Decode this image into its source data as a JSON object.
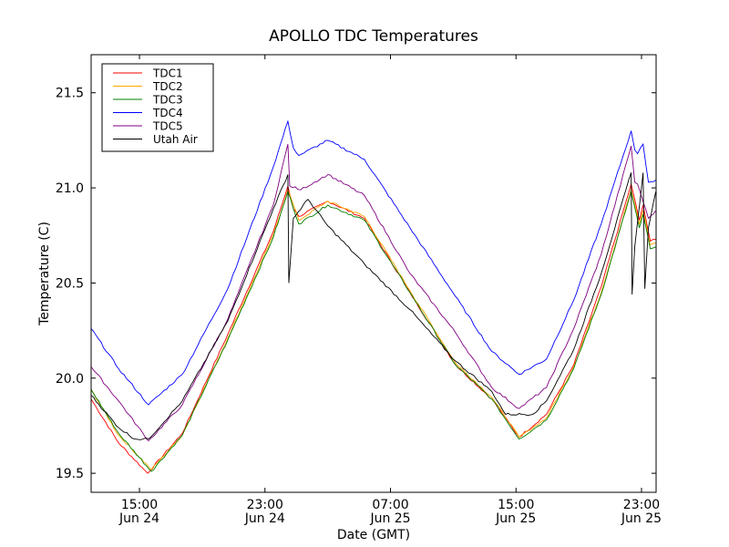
{
  "chart_data": {
    "type": "line",
    "title": "APOLLO TDC Temperatures",
    "xlabel": "Date (GMT)",
    "ylabel": "Temperature (C)",
    "x_units": "hours since 00:00 Jun 24 (GMT)",
    "xlim": [
      11.92,
      47.93
    ],
    "ylim": [
      19.4,
      21.7
    ],
    "grid": false,
    "legend_position": "top-left",
    "yticks": [
      {
        "value": 19.5,
        "label": "19.5"
      },
      {
        "value": 20.0,
        "label": "20.0"
      },
      {
        "value": 20.5,
        "label": "20.5"
      },
      {
        "value": 21.0,
        "label": "21.0"
      },
      {
        "value": 21.5,
        "label": "21.5"
      }
    ],
    "xticks": [
      {
        "value": 15,
        "label": [
          "15:00",
          "Jun 24"
        ]
      },
      {
        "value": 23,
        "label": [
          "23:00",
          "Jun 24"
        ]
      },
      {
        "value": 31,
        "label": [
          "07:00",
          "Jun 25"
        ]
      },
      {
        "value": 39,
        "label": [
          "15:00",
          "Jun 25"
        ]
      },
      {
        "value": 47,
        "label": [
          "23:00",
          "Jun 25"
        ]
      }
    ],
    "series": [
      {
        "name": "TDC1",
        "color": "#ff0000",
        "x": [
          11.92,
          13.67,
          15.52,
          17.73,
          20.63,
          23.53,
          24.46,
          24.81,
          25.16,
          27.01,
          29.34,
          32.24,
          35.14,
          37.46,
          39.2,
          40.94,
          42.68,
          44.43,
          46.34,
          46.86,
          47.1,
          47.56,
          47.91
        ],
        "y": [
          19.89,
          19.66,
          19.5,
          19.71,
          20.23,
          20.77,
          21.01,
          20.89,
          20.85,
          20.93,
          20.84,
          20.45,
          20.07,
          19.89,
          19.69,
          19.81,
          20.07,
          20.48,
          21.02,
          20.83,
          20.91,
          20.72,
          20.73
        ]
      },
      {
        "name": "TDC2",
        "color": "#ffa500",
        "x": [
          11.92,
          13.67,
          15.76,
          17.73,
          20.63,
          23.53,
          24.46,
          25.16,
          27.01,
          29.34,
          32.24,
          35.14,
          37.46,
          39.2,
          40.94,
          42.68,
          44.43,
          46.34,
          46.86,
          47.1,
          47.56,
          47.91
        ],
        "y": [
          19.94,
          19.7,
          19.52,
          19.7,
          20.21,
          20.75,
          20.99,
          20.83,
          20.93,
          20.85,
          20.46,
          20.08,
          19.9,
          19.69,
          19.79,
          20.06,
          20.45,
          20.99,
          20.81,
          20.88,
          20.7,
          20.71
        ]
      },
      {
        "name": "TDC3",
        "color": "#008000",
        "x": [
          11.92,
          13.67,
          15.76,
          17.73,
          20.63,
          23.53,
          24.46,
          25.16,
          27.01,
          29.34,
          32.24,
          35.14,
          37.46,
          39.2,
          40.94,
          42.68,
          44.43,
          46.34,
          46.86,
          47.1,
          47.56,
          47.91
        ],
        "y": [
          19.94,
          19.71,
          19.51,
          19.7,
          20.2,
          20.74,
          20.98,
          20.81,
          20.91,
          20.83,
          20.45,
          20.07,
          19.89,
          19.68,
          19.78,
          20.05,
          20.44,
          20.98,
          20.79,
          20.86,
          20.68,
          20.69
        ]
      },
      {
        "name": "TDC4",
        "color": "#0000ff",
        "x": [
          11.92,
          13.67,
          15.58,
          17.73,
          20.63,
          23.53,
          24.46,
          24.81,
          25.16,
          27.01,
          29.34,
          32.24,
          35.14,
          37.46,
          39.2,
          40.94,
          42.68,
          44.43,
          46.34,
          46.57,
          46.75,
          47.1,
          47.44,
          47.91
        ],
        "y": [
          20.26,
          20.05,
          19.86,
          20.02,
          20.47,
          21.11,
          21.35,
          21.21,
          21.17,
          21.25,
          21.15,
          20.79,
          20.43,
          20.14,
          20.02,
          20.1,
          20.41,
          20.81,
          21.3,
          21.2,
          21.18,
          21.23,
          21.03,
          21.04
        ]
      },
      {
        "name": "TDC5",
        "color": "#800080",
        "x": [
          11.92,
          13.67,
          15.58,
          17.73,
          20.63,
          23.53,
          24.46,
          24.58,
          25.28,
          27.01,
          29.34,
          32.24,
          35.14,
          37.46,
          39.2,
          40.94,
          42.68,
          44.43,
          46.34,
          46.57,
          46.75,
          47.44,
          47.91
        ],
        "y": [
          20.06,
          19.88,
          19.67,
          19.86,
          20.31,
          20.91,
          21.23,
          21.01,
          20.99,
          21.07,
          20.96,
          20.55,
          20.24,
          19.95,
          19.84,
          19.95,
          20.26,
          20.65,
          21.22,
          21.03,
          21.02,
          20.84,
          20.88
        ]
      },
      {
        "name": "Utah Air",
        "color": "#000000",
        "x": [
          11.92,
          13.67,
          14.71,
          15.58,
          17.73,
          20.63,
          23.53,
          24.46,
          24.52,
          24.81,
          25.74,
          27.01,
          29.34,
          32.24,
          35.14,
          37.46,
          38.33,
          40.07,
          40.94,
          42.68,
          44.43,
          46.34,
          46.4,
          46.57,
          47.1,
          47.21,
          47.44,
          47.91
        ],
        "y": [
          19.91,
          19.74,
          19.68,
          19.68,
          19.88,
          20.3,
          20.89,
          21.07,
          20.5,
          20.84,
          20.94,
          20.8,
          20.6,
          20.36,
          20.09,
          19.93,
          19.81,
          19.81,
          19.88,
          20.15,
          20.55,
          21.08,
          20.44,
          20.69,
          21.08,
          20.47,
          20.79,
          20.98
        ]
      }
    ]
  }
}
